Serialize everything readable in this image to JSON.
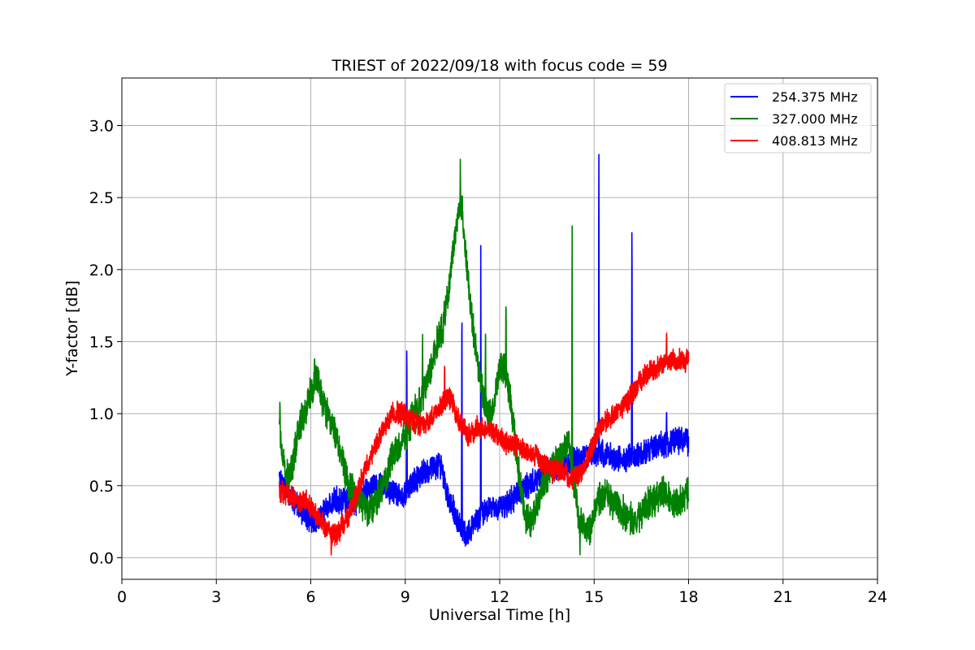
{
  "chart_data": {
    "type": "line",
    "title": "TRIEST of 2022/09/18 with focus code = 59",
    "xlabel": "Universal Time [h]",
    "ylabel": "Y-factor [dB]",
    "xlim": [
      0,
      24
    ],
    "ylim": [
      -0.15,
      3.33
    ],
    "xticks": [
      0,
      3,
      6,
      9,
      12,
      15,
      18,
      21,
      24
    ],
    "xtick_labels": [
      "0",
      "3",
      "6",
      "9",
      "12",
      "15",
      "18",
      "21",
      "24"
    ],
    "yticks": [
      0.0,
      0.5,
      1.0,
      1.5,
      2.0,
      2.5,
      3.0
    ],
    "ytick_labels": [
      "0.0",
      "0.5",
      "1.0",
      "1.5",
      "2.0",
      "2.5",
      "3.0"
    ],
    "grid": true,
    "legend_position": "top-right",
    "series": [
      {
        "name": "254.375 MHz",
        "color": "#0000ff",
        "noise": 0.08,
        "x": [
          5.0,
          5.3,
          5.6,
          5.9,
          6.2,
          6.5,
          6.8,
          7.1,
          7.4,
          7.7,
          8.0,
          8.3,
          8.6,
          8.9,
          9.2,
          9.5,
          9.8,
          10.1,
          10.4,
          10.7,
          10.9,
          11.1,
          11.4,
          11.7,
          12.0,
          12.3,
          12.6,
          12.9,
          13.2,
          13.5,
          13.8,
          14.1,
          14.4,
          14.7,
          15.0,
          15.3,
          15.6,
          15.9,
          16.2,
          16.5,
          16.8,
          17.1,
          17.4,
          17.7,
          18.0
        ],
        "y": [
          0.55,
          0.45,
          0.35,
          0.28,
          0.25,
          0.35,
          0.4,
          0.4,
          0.38,
          0.45,
          0.48,
          0.5,
          0.45,
          0.42,
          0.52,
          0.58,
          0.62,
          0.65,
          0.4,
          0.25,
          0.15,
          0.2,
          0.3,
          0.35,
          0.35,
          0.38,
          0.45,
          0.5,
          0.55,
          0.6,
          0.62,
          0.65,
          0.68,
          0.7,
          0.72,
          0.72,
          0.7,
          0.68,
          0.7,
          0.72,
          0.75,
          0.78,
          0.8,
          0.82,
          0.8
        ],
        "spikes": [
          {
            "x": 9.05,
            "y": 1.66
          },
          {
            "x": 10.8,
            "y": 2.05
          },
          {
            "x": 11.4,
            "y": 2.24
          },
          {
            "x": 15.15,
            "y": 3.17
          },
          {
            "x": 16.2,
            "y": 2.62
          },
          {
            "x": 17.3,
            "y": 1.07
          }
        ]
      },
      {
        "name": "327.000 MHz",
        "color": "#008000",
        "noise": 0.1,
        "x": [
          5.0,
          5.2,
          5.4,
          5.6,
          5.8,
          6.0,
          6.2,
          6.4,
          6.6,
          6.8,
          7.0,
          7.2,
          7.4,
          7.6,
          7.8,
          8.0,
          8.3,
          8.6,
          8.9,
          9.2,
          9.5,
          9.8,
          10.0,
          10.2,
          10.4,
          10.6,
          10.8,
          11.0,
          11.2,
          11.4,
          11.6,
          11.8,
          12.0,
          12.2,
          12.4,
          12.6,
          12.8,
          13.0,
          13.3,
          13.6,
          13.9,
          14.2,
          14.5,
          14.8,
          15.1,
          15.4,
          15.7,
          16.0,
          16.3,
          16.6,
          16.9,
          17.2,
          17.5,
          17.8,
          18.0
        ],
        "y": [
          0.9,
          0.55,
          0.6,
          0.9,
          1.0,
          1.15,
          1.25,
          1.05,
          0.95,
          0.85,
          0.7,
          0.5,
          0.45,
          0.4,
          0.3,
          0.35,
          0.5,
          0.7,
          0.8,
          0.95,
          1.1,
          1.3,
          1.5,
          1.6,
          1.9,
          2.3,
          2.45,
          1.9,
          1.5,
          1.2,
          1.0,
          1.05,
          1.35,
          1.3,
          1.0,
          0.6,
          0.3,
          0.25,
          0.45,
          0.6,
          0.7,
          0.8,
          0.3,
          0.15,
          0.4,
          0.45,
          0.35,
          0.3,
          0.25,
          0.35,
          0.4,
          0.45,
          0.38,
          0.4,
          0.45
        ],
        "spikes": [
          {
            "x": 5.02,
            "y": 1.13
          },
          {
            "x": 6.12,
            "y": 1.43
          },
          {
            "x": 9.55,
            "y": 1.55
          },
          {
            "x": 10.75,
            "y": 2.78
          },
          {
            "x": 11.55,
            "y": 1.7
          },
          {
            "x": 12.2,
            "y": 1.87
          },
          {
            "x": 14.3,
            "y": 2.44
          },
          {
            "x": 14.55,
            "y": 0.0
          }
        ]
      },
      {
        "name": "408.813 MHz",
        "color": "#ff0000",
        "noise": 0.07,
        "x": [
          5.0,
          5.3,
          5.6,
          5.9,
          6.2,
          6.5,
          6.8,
          7.1,
          7.4,
          7.7,
          8.0,
          8.3,
          8.6,
          8.9,
          9.2,
          9.5,
          9.8,
          10.1,
          10.4,
          10.7,
          11.0,
          11.3,
          11.6,
          11.9,
          12.2,
          12.5,
          12.8,
          13.1,
          13.4,
          13.7,
          14.0,
          14.3,
          14.6,
          14.9,
          15.2,
          15.5,
          15.8,
          16.1,
          16.4,
          16.7,
          17.0,
          17.3,
          17.6,
          17.9,
          18.0
        ],
        "y": [
          0.45,
          0.45,
          0.4,
          0.38,
          0.3,
          0.2,
          0.15,
          0.25,
          0.4,
          0.6,
          0.75,
          0.9,
          1.0,
          1.0,
          0.95,
          0.92,
          0.95,
          1.05,
          1.12,
          0.95,
          0.85,
          0.9,
          0.9,
          0.85,
          0.8,
          0.78,
          0.75,
          0.72,
          0.65,
          0.6,
          0.6,
          0.55,
          0.58,
          0.75,
          0.9,
          0.98,
          1.02,
          1.1,
          1.2,
          1.3,
          1.32,
          1.35,
          1.38,
          1.36,
          1.38
        ],
        "spikes": [
          {
            "x": 10.25,
            "y": 1.4
          },
          {
            "x": 17.3,
            "y": 1.62
          },
          {
            "x": 6.65,
            "y": 0.0
          }
        ]
      }
    ]
  }
}
